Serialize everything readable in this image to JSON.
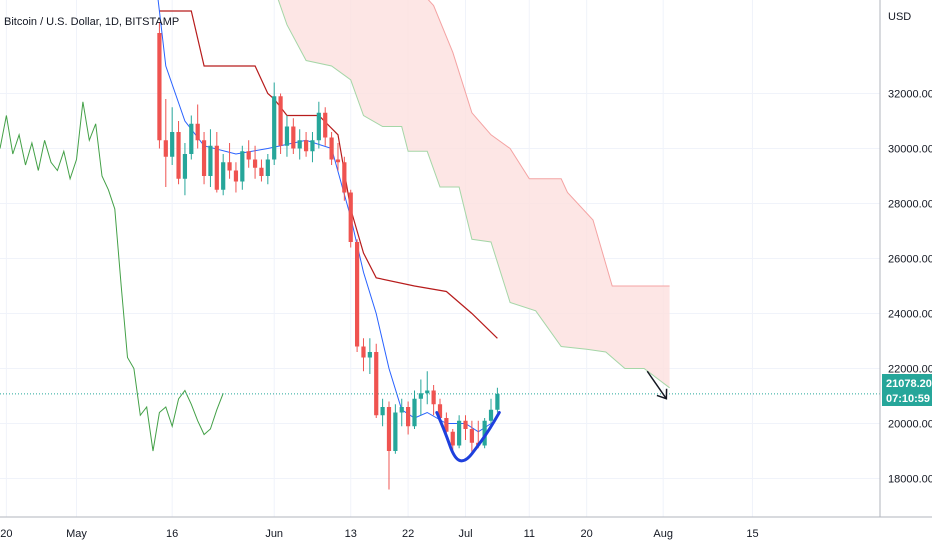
{
  "chart_data": {
    "type": "candlestick",
    "title": "Bitcoin / U.S. Dollar, 1D, BITSTAMP",
    "currency": "USD",
    "y_ticks": [
      "32000.00",
      "30000.00",
      "28000.00",
      "26000.00",
      "24000.00",
      "22000.00",
      "20000.00",
      "18000.00"
    ],
    "y_tick_values": [
      32000,
      30000,
      28000,
      26000,
      24000,
      22000,
      20000,
      18000
    ],
    "ylim": [
      16600,
      35400
    ],
    "x_ticks": [
      "20",
      "May",
      "16",
      "Jun",
      "13",
      "22",
      "Jul",
      "11",
      "20",
      "Aug",
      "15"
    ],
    "x_tick_days": [
      -11,
      0,
      15,
      31,
      43,
      52,
      61,
      71,
      80,
      92,
      106
    ],
    "xlim": [
      -12,
      126
    ],
    "last_price": "21078.20",
    "last_price_value": 21078.2,
    "countdown": "07:10:59",
    "colors": {
      "up": "#26a69a",
      "down": "#ef5350",
      "cloud": "#fde0df",
      "conversion": "#2962ff",
      "base": "#b71c1c",
      "lagging": "#43a047",
      "price_line": "#26a69a",
      "annotation": "#1e40dd"
    },
    "candles": [
      [
        13,
        34200,
        34600,
        30000,
        30300
      ],
      [
        14,
        30300,
        31800,
        28600,
        29700
      ],
      [
        15,
        29700,
        31500,
        29400,
        30600
      ],
      [
        16,
        30600,
        31000,
        28700,
        28900
      ],
      [
        17,
        28900,
        30200,
        28300,
        29800
      ],
      [
        18,
        29800,
        31200,
        29600,
        30900
      ],
      [
        19,
        30900,
        31600,
        30000,
        30300
      ],
      [
        20,
        30300,
        30600,
        28700,
        29000
      ],
      [
        21,
        29000,
        30700,
        28600,
        30100
      ],
      [
        22,
        30100,
        30600,
        28400,
        28500
      ],
      [
        23,
        28500,
        29800,
        28300,
        29500
      ],
      [
        24,
        29500,
        30200,
        28900,
        29200
      ],
      [
        25,
        29200,
        29500,
        28400,
        28800
      ],
      [
        26,
        28800,
        30100,
        28500,
        29900
      ],
      [
        27,
        29900,
        30300,
        29300,
        29600
      ],
      [
        28,
        29600,
        30100,
        28900,
        29300
      ],
      [
        29,
        29300,
        29600,
        28800,
        29000
      ],
      [
        30,
        29000,
        29800,
        28700,
        29600
      ],
      [
        31,
        29600,
        32400,
        29400,
        31900
      ],
      [
        32,
        31900,
        32000,
        29800,
        30100
      ],
      [
        33,
        30100,
        31200,
        29700,
        30800
      ],
      [
        34,
        30800,
        31100,
        29800,
        30000
      ],
      [
        35,
        30000,
        30700,
        29600,
        30300
      ],
      [
        36,
        30300,
        30600,
        29700,
        29900
      ],
      [
        37,
        29900,
        30600,
        29500,
        30300
      ],
      [
        38,
        30300,
        31700,
        30000,
        31300
      ],
      [
        39,
        31300,
        31500,
        30100,
        30400
      ],
      [
        40,
        30400,
        30600,
        29400,
        29600
      ],
      [
        41,
        29600,
        30200,
        29200,
        29500
      ],
      [
        42,
        29500,
        29700,
        28100,
        28400
      ],
      [
        43,
        28400,
        28500,
        26400,
        26600
      ],
      [
        44,
        26600,
        26700,
        22600,
        22800
      ],
      [
        45,
        22800,
        23100,
        21900,
        22400
      ],
      [
        46,
        22400,
        23100,
        21800,
        22600
      ],
      [
        47,
        22600,
        22900,
        20200,
        20300
      ],
      [
        48,
        20300,
        20900,
        19900,
        20600
      ],
      [
        49,
        20600,
        20800,
        17600,
        19000
      ],
      [
        50,
        19000,
        20700,
        18900,
        20400
      ],
      [
        51,
        20400,
        20900,
        19900,
        20600
      ],
      [
        52,
        20600,
        20800,
        19600,
        19900
      ],
      [
        53,
        19900,
        21200,
        19800,
        20900
      ],
      [
        54,
        20900,
        21600,
        20300,
        21100
      ],
      [
        55,
        21100,
        21900,
        20700,
        21200
      ],
      [
        56,
        21200,
        21400,
        20300,
        20700
      ],
      [
        57,
        20700,
        20900,
        20100,
        20200
      ],
      [
        58,
        20200,
        20400,
        19500,
        19700
      ],
      [
        59,
        19700,
        19800,
        19000,
        19200
      ],
      [
        60,
        19200,
        20300,
        19100,
        20100
      ],
      [
        61,
        20100,
        20300,
        19400,
        19800
      ],
      [
        62,
        19800,
        20100,
        18900,
        19300
      ],
      [
        63,
        19300,
        20100,
        19100,
        19200
      ],
      [
        64,
        19200,
        20200,
        19100,
        20100
      ],
      [
        65,
        20100,
        20900,
        19800,
        20500
      ],
      [
        66,
        20500,
        21300,
        20400,
        21078
      ]
    ],
    "conversion_line": [
      [
        12,
        37000
      ],
      [
        14,
        33000
      ],
      [
        17,
        31000
      ],
      [
        20,
        30100
      ],
      [
        25,
        29800
      ],
      [
        30,
        30000
      ],
      [
        36,
        30300
      ],
      [
        40,
        30000
      ],
      [
        43,
        27500
      ],
      [
        45,
        25500
      ],
      [
        47,
        24000
      ],
      [
        49,
        22000
      ],
      [
        51,
        20500
      ],
      [
        53,
        20200
      ],
      [
        55,
        20400
      ],
      [
        58,
        20000
      ],
      [
        61,
        20000
      ],
      [
        63,
        19700
      ],
      [
        65,
        20000
      ]
    ],
    "base_line": [
      [
        13,
        35000
      ],
      [
        18,
        35000
      ],
      [
        20,
        33000
      ],
      [
        28,
        33000
      ],
      [
        30,
        32000
      ],
      [
        31,
        31800
      ],
      [
        33,
        31200
      ],
      [
        38,
        31200
      ],
      [
        41,
        30500
      ],
      [
        43,
        27800
      ],
      [
        45,
        26200
      ],
      [
        47,
        25300
      ],
      [
        53,
        25000
      ],
      [
        58,
        24800
      ],
      [
        62,
        24000
      ],
      [
        66,
        23100
      ]
    ],
    "lagging_span": [
      [
        -12,
        30000
      ],
      [
        -11,
        31200
      ],
      [
        -10,
        29800
      ],
      [
        -9,
        30500
      ],
      [
        -8,
        29400
      ],
      [
        -7,
        30200
      ],
      [
        -6,
        29200
      ],
      [
        -5,
        30300
      ],
      [
        -4,
        29500
      ],
      [
        -3,
        29200
      ],
      [
        -2,
        29900
      ],
      [
        -1,
        28900
      ],
      [
        0,
        29600
      ],
      [
        1,
        31700
      ],
      [
        2,
        30300
      ],
      [
        3,
        30900
      ],
      [
        4,
        29000
      ],
      [
        5,
        28500
      ],
      [
        6,
        27800
      ],
      [
        7,
        25000
      ],
      [
        8,
        22400
      ],
      [
        9,
        22000
      ],
      [
        10,
        20300
      ],
      [
        11,
        20600
      ],
      [
        12,
        19000
      ],
      [
        13,
        20400
      ],
      [
        14,
        20600
      ],
      [
        15,
        19900
      ],
      [
        16,
        20900
      ],
      [
        17,
        21200
      ],
      [
        18,
        20700
      ],
      [
        19,
        20100
      ],
      [
        20,
        19600
      ],
      [
        21,
        19800
      ],
      [
        22,
        20500
      ],
      [
        23,
        21100
      ]
    ],
    "cloud_span_a": [
      [
        28,
        38500
      ],
      [
        30,
        36500
      ],
      [
        33,
        34500
      ],
      [
        36,
        33200
      ],
      [
        40,
        33000
      ],
      [
        43,
        32500
      ],
      [
        45,
        31200
      ],
      [
        48,
        30800
      ],
      [
        51,
        30800
      ],
      [
        52,
        29900
      ],
      [
        55,
        29900
      ],
      [
        57,
        28600
      ],
      [
        60,
        28600
      ],
      [
        62,
        26700
      ],
      [
        65,
        26600
      ],
      [
        68,
        24400
      ],
      [
        72,
        24100
      ],
      [
        76,
        22800
      ],
      [
        80,
        22700
      ],
      [
        83,
        22600
      ],
      [
        86,
        22000
      ],
      [
        89,
        22000
      ],
      [
        93,
        21300
      ]
    ],
    "cloud_span_b": [
      [
        28,
        38500
      ],
      [
        30,
        38000
      ],
      [
        36,
        37800
      ],
      [
        40,
        37700
      ],
      [
        43,
        37500
      ],
      [
        45,
        36500
      ],
      [
        52,
        36200
      ],
      [
        56,
        35200
      ],
      [
        59,
        33500
      ],
      [
        62,
        31300
      ],
      [
        65,
        30500
      ],
      [
        68,
        30000
      ],
      [
        71,
        28900
      ],
      [
        74,
        28900
      ],
      [
        76,
        28900
      ],
      [
        77,
        28400
      ],
      [
        81,
        27400
      ],
      [
        84,
        25000
      ],
      [
        93,
        25000
      ]
    ],
    "annotations": [
      {
        "type": "curve",
        "points": [
          [
            56.5,
            20400
          ],
          [
            57.8,
            19700
          ],
          [
            59.3,
            18700
          ],
          [
            61,
            18600
          ],
          [
            63,
            19200
          ],
          [
            64.8,
            19800
          ],
          [
            66.3,
            20400
          ]
        ]
      },
      {
        "type": "arrow",
        "from": [
          89.5,
          21900
        ],
        "to": [
          92.5,
          20900
        ]
      }
    ],
    "grid": true,
    "legend": "none"
  }
}
